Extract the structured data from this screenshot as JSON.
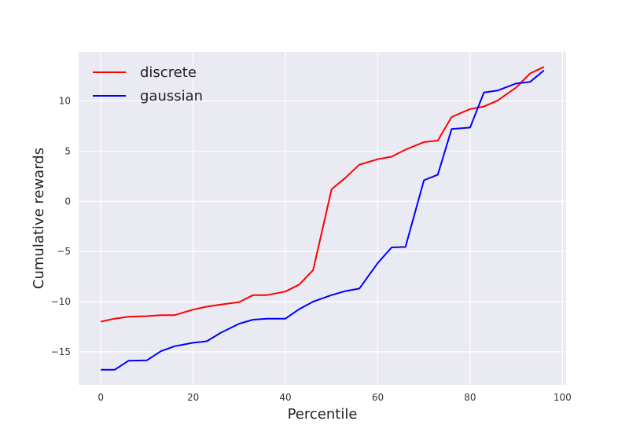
{
  "chart_data": {
    "type": "line",
    "title": "",
    "xlabel": "Percentile",
    "ylabel": "Cumulative rewards",
    "xlim": [
      -4.8,
      100.8
    ],
    "ylim": [
      -18.3,
      14.9
    ],
    "x_ticks": [
      0,
      20,
      40,
      60,
      80,
      100
    ],
    "y_ticks": [
      -15,
      -10,
      -5,
      0,
      5,
      10
    ],
    "x_tick_labels": [
      "0",
      "20",
      "40",
      "60",
      "80",
      "100"
    ],
    "y_tick_labels": [
      "−15",
      "−10",
      "−5",
      "0",
      "5",
      "10"
    ],
    "grid": true,
    "legend_position": "top-left",
    "series": [
      {
        "name": "discrete",
        "color": "#ff0000",
        "x": [
          0,
          3,
          6,
          10,
          13,
          16,
          20,
          23,
          26,
          30,
          33,
          36,
          40,
          43,
          46,
          50,
          53,
          56,
          60,
          63,
          66,
          70,
          73,
          76,
          80,
          83,
          86,
          90,
          93,
          96
        ],
        "y": [
          -12.0,
          -11.7,
          -11.5,
          -11.45,
          -11.35,
          -11.35,
          -10.8,
          -10.5,
          -10.3,
          -10.05,
          -9.35,
          -9.35,
          -9.0,
          -8.3,
          -6.85,
          1.2,
          2.35,
          3.65,
          4.2,
          4.45,
          5.15,
          5.9,
          6.05,
          8.4,
          9.2,
          9.45,
          10.05,
          11.35,
          12.75,
          13.4
        ]
      },
      {
        "name": "gaussian",
        "color": "#0000ff",
        "x": [
          0,
          3,
          6,
          10,
          13,
          16,
          20,
          23,
          26,
          30,
          33,
          36,
          40,
          43,
          46,
          50,
          53,
          56,
          60,
          63,
          66,
          70,
          73,
          76,
          80,
          83,
          86,
          90,
          93,
          96
        ],
        "y": [
          -16.8,
          -16.8,
          -15.9,
          -15.85,
          -14.95,
          -14.45,
          -14.1,
          -13.95,
          -13.1,
          -12.2,
          -11.8,
          -11.7,
          -11.7,
          -10.75,
          -10.0,
          -9.35,
          -8.95,
          -8.7,
          -6.15,
          -4.6,
          -4.55,
          2.1,
          2.65,
          7.2,
          7.35,
          10.85,
          11.05,
          11.75,
          11.9,
          13.05
        ]
      }
    ]
  }
}
